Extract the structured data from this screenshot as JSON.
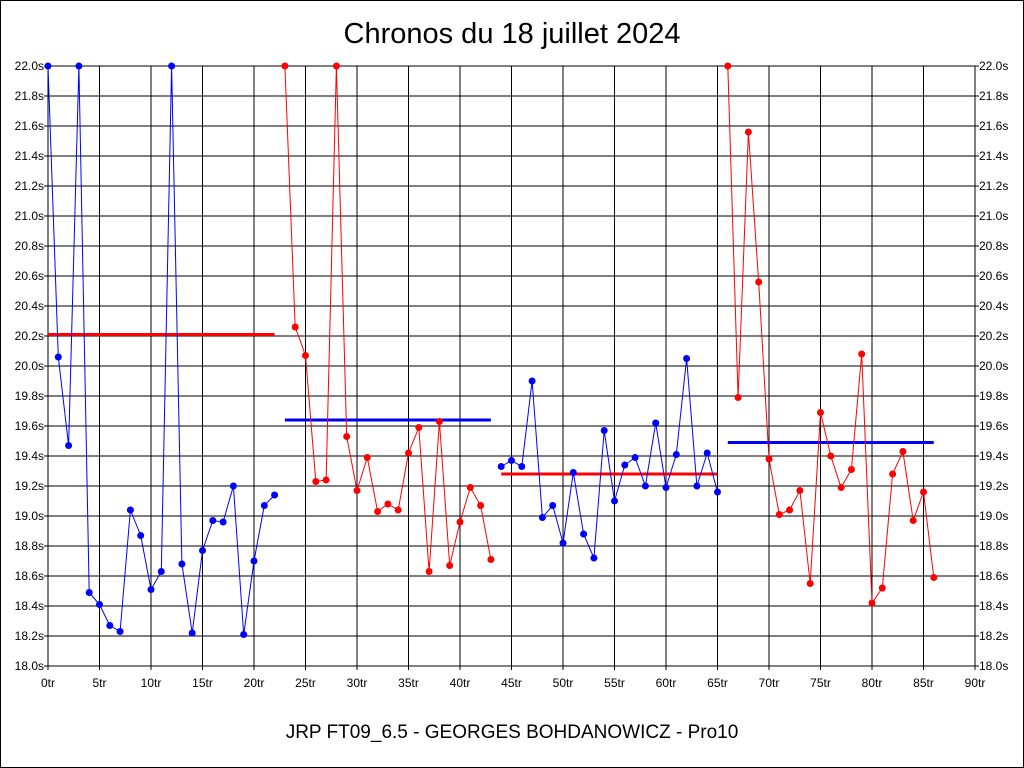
{
  "chart_data": {
    "type": "line",
    "title": "Chronos du 18 juillet 2024",
    "footer": "JRP FT09_6.5 - GEORGES BOHDANOWICZ - Pro10",
    "xlim": [
      0,
      90
    ],
    "ylim": [
      18.0,
      22.0
    ],
    "x_ticks": [
      0,
      5,
      10,
      15,
      20,
      25,
      30,
      35,
      40,
      45,
      50,
      55,
      60,
      65,
      70,
      75,
      80,
      85,
      90
    ],
    "x_tick_labels": [
      "0tr",
      "5tr",
      "10tr",
      "15tr",
      "20tr",
      "25tr",
      "30tr",
      "35tr",
      "40tr",
      "45tr",
      "50tr",
      "55tr",
      "60tr",
      "65tr",
      "70tr",
      "75tr",
      "80tr",
      "85tr",
      "90tr"
    ],
    "y_ticks": [
      18.0,
      18.2,
      18.4,
      18.6,
      18.8,
      19.0,
      19.2,
      19.4,
      19.6,
      19.8,
      20.0,
      20.2,
      20.4,
      20.6,
      20.8,
      21.0,
      21.2,
      21.4,
      21.6,
      21.8,
      22.0
    ],
    "y_tick_labels": [
      "18.0s",
      "18.2s",
      "18.4s",
      "18.6s",
      "18.8s",
      "19.0s",
      "19.2s",
      "19.4s",
      "19.6s",
      "19.8s",
      "20.0s",
      "20.2s",
      "20.4s",
      "20.6s",
      "20.8s",
      "21.0s",
      "21.2s",
      "21.4s",
      "21.6s",
      "21.8s",
      "22.0s"
    ],
    "grid": true,
    "series": [
      {
        "color": "#0000ff",
        "x": [
          0,
          1,
          2,
          3,
          4,
          5,
          6,
          7,
          8,
          9,
          10,
          11,
          12,
          13,
          14,
          15,
          16,
          17,
          18,
          19,
          20,
          21,
          22
        ],
        "y": [
          22.0,
          20.06,
          19.47,
          22.0,
          18.49,
          18.41,
          18.27,
          18.23,
          19.04,
          18.87,
          18.51,
          18.63,
          22.0,
          18.68,
          18.22,
          18.77,
          18.97,
          18.96,
          19.2,
          18.21,
          18.7,
          19.07,
          19.14
        ]
      },
      {
        "color": "#ff0000",
        "x": [
          23,
          24,
          25,
          26,
          27,
          28,
          29,
          30,
          31,
          32,
          33,
          34,
          35,
          36,
          37,
          38,
          39,
          40,
          41,
          42,
          43
        ],
        "y": [
          22.0,
          20.26,
          20.07,
          19.23,
          19.24,
          22.0,
          19.53,
          19.17,
          19.39,
          19.03,
          19.08,
          19.04,
          19.42,
          19.59,
          18.63,
          19.63,
          18.67,
          18.96,
          19.19,
          19.07,
          18.71
        ]
      },
      {
        "color": "#0000ff",
        "x": [
          44,
          45,
          46,
          47,
          48,
          49,
          50,
          51,
          52,
          53,
          54,
          55,
          56,
          57,
          58,
          59,
          60,
          61,
          62,
          63,
          64,
          65
        ],
        "y": [
          19.33,
          19.37,
          19.33,
          19.9,
          18.99,
          19.07,
          18.82,
          19.29,
          18.88,
          18.72,
          19.57,
          19.1,
          19.34,
          19.39,
          19.2,
          19.62,
          19.19,
          19.41,
          20.05,
          19.2,
          19.42,
          19.16
        ]
      },
      {
        "color": "#ff0000",
        "x": [
          66,
          67,
          68,
          69,
          70,
          71,
          72,
          73,
          74,
          75,
          76,
          77,
          78,
          79,
          80,
          81,
          82,
          83,
          84,
          85,
          86
        ],
        "y": [
          22.0,
          19.79,
          21.56,
          20.56,
          19.38,
          19.01,
          19.04,
          19.17,
          18.55,
          19.69,
          19.4,
          19.19,
          19.31,
          20.08,
          18.42,
          18.52,
          19.28,
          19.43,
          18.97,
          19.16,
          18.59
        ]
      }
    ],
    "averages": [
      {
        "color": "#ff0000",
        "x_start": 0,
        "x_end": 22,
        "y": 20.21
      },
      {
        "color": "#0000ff",
        "x_start": 23,
        "x_end": 43,
        "y": 19.64
      },
      {
        "color": "#ff0000",
        "x_start": 44,
        "x_end": 65,
        "y": 19.28
      },
      {
        "color": "#0000ff",
        "x_start": 66,
        "x_end": 86,
        "y": 19.49
      }
    ]
  }
}
